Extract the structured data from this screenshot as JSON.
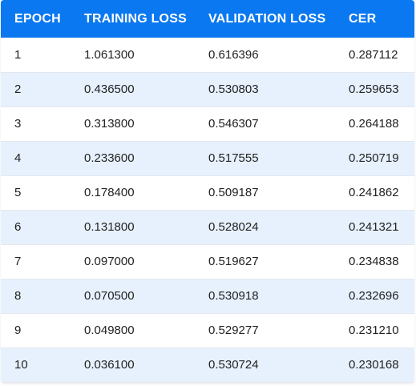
{
  "table": {
    "headers": [
      "EPOCH",
      "TRAINING LOSS",
      "VALIDATION LOSS",
      "CER"
    ],
    "rows": [
      [
        "1",
        "1.061300",
        "0.616396",
        "0.287112"
      ],
      [
        "2",
        "0.436500",
        "0.530803",
        "0.259653"
      ],
      [
        "3",
        "0.313800",
        "0.546307",
        "0.264188"
      ],
      [
        "4",
        "0.233600",
        "0.517555",
        "0.250719"
      ],
      [
        "5",
        "0.178400",
        "0.509187",
        "0.241862"
      ],
      [
        "6",
        "0.131800",
        "0.528024",
        "0.241321"
      ],
      [
        "7",
        "0.097000",
        "0.519627",
        "0.234838"
      ],
      [
        "8",
        "0.070500",
        "0.530918",
        "0.232696"
      ],
      [
        "9",
        "0.049800",
        "0.529277",
        "0.231210"
      ],
      [
        "10",
        "0.036100",
        "0.530724",
        "0.230168"
      ]
    ]
  },
  "colors": {
    "header_bg": "#0a78f0",
    "header_text": "#ffffff",
    "row_alt_bg": "#e7f1fd",
    "row_bg": "#ffffff"
  }
}
